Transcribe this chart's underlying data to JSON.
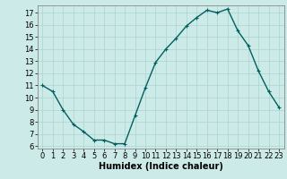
{
  "x": [
    0,
    1,
    2,
    3,
    4,
    5,
    6,
    7,
    8,
    9,
    10,
    11,
    12,
    13,
    14,
    15,
    16,
    17,
    18,
    19,
    20,
    21,
    22,
    23
  ],
  "y": [
    11,
    10.5,
    9,
    7.8,
    7.2,
    6.5,
    6.5,
    6.2,
    6.2,
    8.5,
    10.8,
    12.9,
    14.0,
    14.9,
    15.9,
    16.6,
    17.2,
    17.0,
    17.3,
    15.5,
    14.3,
    12.2,
    10.5,
    9.2
  ],
  "line_color": "#006060",
  "marker": "+",
  "marker_size": 3,
  "line_width": 1.0,
  "xlabel": "Humidex (Indice chaleur)",
  "xlabel_fontsize": 7,
  "tick_fontsize": 6,
  "ylim": [
    5.8,
    17.6
  ],
  "xlim": [
    -0.5,
    23.5
  ],
  "yticks": [
    6,
    7,
    8,
    9,
    10,
    11,
    12,
    13,
    14,
    15,
    16,
    17
  ],
  "xticks": [
    0,
    1,
    2,
    3,
    4,
    5,
    6,
    7,
    8,
    9,
    10,
    11,
    12,
    13,
    14,
    15,
    16,
    17,
    18,
    19,
    20,
    21,
    22,
    23
  ],
  "bg_color": "#cceae7",
  "grid_color": "#aad4d0",
  "spine_color": "#888888"
}
